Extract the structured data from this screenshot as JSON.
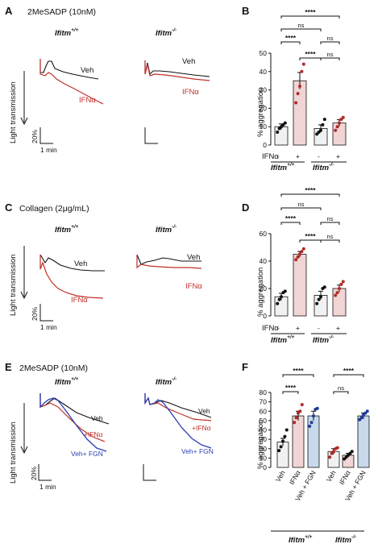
{
  "panels": {
    "A": {
      "label": "A",
      "condition": "2MeSADP (10nM)",
      "genotypes": [
        {
          "base": "Ifitm",
          "sup": "+/+"
        },
        {
          "base": "Ifitm",
          "sup": "-/-"
        }
      ],
      "ylabel": "Light transmission",
      "scale_y": "20%",
      "scale_x": "1 min",
      "traces": [
        {
          "name": "Veh",
          "color": "#111111"
        },
        {
          "name": "IFNα",
          "color": "#c0302b"
        }
      ]
    },
    "C": {
      "label": "C",
      "condition": "Collagen (2μg/mL)",
      "genotypes": [
        {
          "base": "Ifitm",
          "sup": "+/+"
        },
        {
          "base": "Ifitm",
          "sup": "-/-"
        }
      ],
      "ylabel": "Light transmission",
      "scale_y": "20%",
      "scale_x": "1 min",
      "traces": [
        {
          "name": "Veh",
          "color": "#111111"
        },
        {
          "name": "IFNα",
          "color": "#c0302b"
        }
      ]
    },
    "E": {
      "label": "E",
      "condition": "2MeSADP (10nM)",
      "genotypes": [
        {
          "base": "Ifitm",
          "sup": "+/+"
        },
        {
          "base": "Ifitm",
          "sup": "-/-"
        }
      ],
      "ylabel": "Light transmission",
      "scale_y": "20%",
      "scale_x": "1 min",
      "traces": [
        {
          "name": "Veh",
          "color": "#111111"
        },
        {
          "name": "+IFNα",
          "color": "#c0302b"
        },
        {
          "name": "Veh+ FGN",
          "color": "#2b3fb5"
        }
      ]
    },
    "B": {
      "label": "B",
      "ylabel": "% aggregation",
      "xrow_label": "IFNα",
      "signs": [
        "-",
        "+",
        "-",
        "+"
      ]
    },
    "D": {
      "label": "D",
      "ylabel": "% aggregation",
      "xrow_label": "IFNα",
      "signs": [
        "-",
        "+",
        "-",
        "+"
      ]
    },
    "F": {
      "label": "F",
      "ylabel": "% aggregation",
      "categories": [
        "Veh",
        "IFNα",
        "Veh + FGN",
        "Veh",
        "IFNα",
        "Veh + FGN"
      ]
    }
  },
  "chart_data": [
    {
      "panel": "B",
      "type": "bar",
      "ylabel": "% aggregation",
      "ylim": [
        0,
        50
      ],
      "yticks": [
        0,
        10,
        20,
        30,
        40,
        50
      ],
      "groups": [
        {
          "base": "Ifitm",
          "sup": "+/+"
        },
        {
          "base": "Ifitm",
          "sup": "-/-"
        }
      ],
      "categories": [
        "-",
        "+",
        "-",
        "+"
      ],
      "values": [
        10,
        35,
        9,
        12
      ],
      "errors": [
        1.5,
        4.5,
        2,
        1.8
      ],
      "points": [
        [
          7,
          9,
          10,
          11,
          12
        ],
        [
          23,
          28,
          32,
          40,
          44
        ],
        [
          6,
          7,
          8,
          11,
          14
        ],
        [
          8,
          10,
          12,
          14,
          15
        ]
      ],
      "comparisons": [
        {
          "label": "****"
        },
        {
          "label": "****"
        },
        {
          "label": "ns"
        },
        {
          "label": "****"
        },
        {
          "label": "ns"
        },
        {
          "label": "ns"
        }
      ]
    },
    {
      "panel": "D",
      "type": "bar",
      "ylabel": "% aggregation",
      "ylim": [
        0,
        60
      ],
      "yticks": [
        0,
        20,
        40,
        60
      ],
      "groups": [
        {
          "base": "Ifitm",
          "sup": "+/+"
        },
        {
          "base": "Ifitm",
          "sup": "-/-"
        }
      ],
      "categories": [
        "-",
        "+",
        "-",
        "+"
      ],
      "values": [
        14,
        45,
        15,
        20
      ],
      "errors": [
        2.5,
        2,
        3,
        2.5
      ],
      "points": [
        [
          9,
          12,
          14,
          17,
          18
        ],
        [
          41,
          43,
          45,
          47,
          49
        ],
        [
          9,
          12,
          14,
          20,
          21
        ],
        [
          15,
          17,
          20,
          23,
          25
        ]
      ],
      "comparisons": [
        {
          "label": "****"
        },
        {
          "label": "****"
        },
        {
          "label": "ns"
        },
        {
          "label": "****"
        },
        {
          "label": "ns"
        },
        {
          "label": "ns"
        }
      ]
    },
    {
      "panel": "F",
      "type": "bar",
      "ylabel": "% aggregation",
      "ylim": [
        0,
        80
      ],
      "yticks": [
        0,
        10,
        20,
        30,
        40,
        50,
        60,
        70,
        80
      ],
      "groups": [
        {
          "base": "Ifitm",
          "sup": "+/+"
        },
        {
          "base": "Ifitm",
          "sup": "-/-"
        }
      ],
      "categories": [
        "Veh",
        "IFNα",
        "Veh + FGN",
        "Veh",
        "IFNα",
        "Veh + FGN"
      ],
      "values": [
        27,
        55,
        55,
        17,
        13,
        55
      ],
      "errors": [
        4,
        5,
        5,
        3,
        2,
        3
      ],
      "points": [
        [
          18,
          22,
          28,
          33,
          40
        ],
        [
          48,
          53,
          58,
          60,
          67
        ],
        [
          44,
          48,
          55,
          62,
          63
        ],
        [
          11,
          15,
          17,
          20,
          21
        ],
        [
          9,
          11,
          13,
          15,
          17
        ],
        [
          51,
          53,
          56,
          58,
          60
        ]
      ],
      "comparisons": [
        {
          "label": "****"
        },
        {
          "label": "****"
        },
        {
          "label": "****"
        },
        {
          "label": "ns"
        }
      ]
    }
  ]
}
